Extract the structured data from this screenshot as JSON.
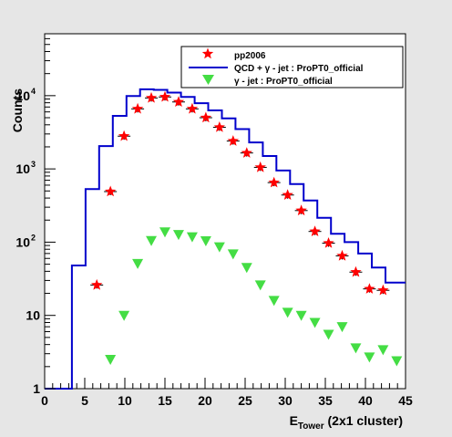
{
  "chart_data": {
    "type": "scatter",
    "ylabel": "Counts",
    "xlabel_main": "E",
    "xlabel_sub": "Tower",
    "xlabel_rest": " (2x1 cluster)",
    "xlim": [
      0,
      45
    ],
    "ylim": [
      1,
      70000
    ],
    "y_scale": "log",
    "legend_position": "top-right",
    "x_ticks": [
      0,
      5,
      10,
      15,
      20,
      25,
      30,
      35,
      40,
      45
    ],
    "y_ticks": [
      {
        "value": 1,
        "label": "1"
      },
      {
        "value": 10,
        "label": "10"
      },
      {
        "value": 100,
        "label": "10",
        "exp": "2"
      },
      {
        "value": 1000,
        "label": "10",
        "exp": "3"
      },
      {
        "value": 10000,
        "label": "10",
        "exp": "4"
      }
    ],
    "series": [
      {
        "name": "pp2006",
        "kind": "points",
        "color": "#ff0000",
        "marker": "star",
        "x": [
          6.5,
          8.2,
          9.9,
          11.6,
          13.3,
          15.0,
          16.7,
          18.4,
          20.1,
          21.8,
          23.5,
          25.2,
          26.9,
          28.6,
          30.3,
          32.0,
          33.7,
          35.4,
          37.1,
          38.8,
          40.5,
          42.2,
          43.9
        ],
        "y": [
          26,
          490,
          2800,
          6600,
          9300,
          9600,
          8200,
          6600,
          5000,
          3700,
          2400,
          1650,
          1050,
          650,
          440,
          270,
          140,
          97,
          65,
          39,
          23,
          22,
          0
        ]
      },
      {
        "name": "QCD + γ - jet : ProPT0_official",
        "kind": "step",
        "color": "#0000cc",
        "edges": [
          0,
          1.7,
          3.4,
          5.1,
          6.8,
          8.5,
          10.2,
          11.9,
          13.6,
          15.3,
          17.0,
          18.7,
          20.4,
          22.1,
          23.8,
          25.5,
          27.2,
          28.9,
          30.6,
          32.3,
          34.0,
          35.7,
          37.4,
          39.1,
          40.8,
          42.5,
          45
        ],
        "values": [
          1,
          1,
          48,
          530,
          2050,
          5300,
          9900,
          12200,
          12000,
          11000,
          9600,
          7900,
          6300,
          4900,
          3500,
          2300,
          1500,
          950,
          620,
          370,
          215,
          130,
          100,
          70,
          45,
          28
        ]
      },
      {
        "name": "γ - jet : ProPT0_official",
        "kind": "points",
        "color": "#44dd44",
        "marker": "triangle-down",
        "x": [
          8.2,
          9.9,
          11.6,
          13.3,
          15.0,
          16.7,
          18.4,
          20.1,
          21.8,
          23.5,
          25.2,
          26.9,
          28.6,
          30.3,
          32.0,
          33.7,
          35.4,
          37.1,
          38.8,
          40.5,
          42.2,
          43.9
        ],
        "y": [
          2.5,
          10,
          51,
          105,
          138,
          127,
          118,
          104,
          86,
          69,
          45,
          26,
          16,
          11,
          10,
          8,
          5.5,
          7,
          3.6,
          2.7,
          3.4,
          2.4
        ]
      }
    ]
  }
}
